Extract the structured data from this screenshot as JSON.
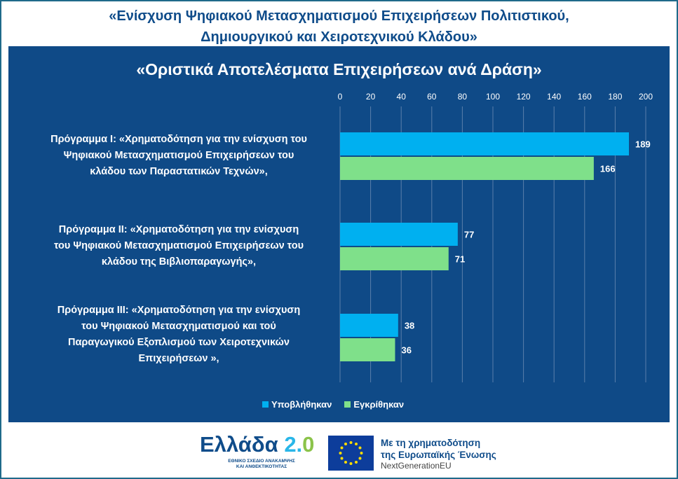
{
  "header": {
    "title_line1": "«Ενίσχυση Ψηφιακού Μετασχηματισμού Επιχειρήσεων Πολιτιστικού,",
    "title_line2": "Δημιουργικού και Χειροτεχνικού Κλάδου»"
  },
  "chart_data": {
    "type": "bar",
    "orientation": "horizontal",
    "title": "«Οριστικά Αποτελέσματα Επιχειρήσεων ανά Δράση»",
    "categories": [
      [
        "Πρόγραμμα Ι: «Χρηματοδότηση για την ενίσχυση του",
        "Ψηφιακού Μετασχηματισμού Επιχειρήσεων του",
        "κλάδου των Παραστατικών Τεχνών»,"
      ],
      [
        "Πρόγραμμα ΙΙ: «Χρηματοδότηση για την ενίσχυση",
        "του Ψηφιακού Μετασχηματισμού Επιχειρήσεων του",
        "κλάδου της Βιβλιοπαραγωγής»,"
      ],
      [
        "Πρόγραμμα ΙΙΙ: «Χρηματοδότηση για την ενίσχυση",
        "του Ψηφιακού Μετασχηματισμού και τού",
        "Παραγωγικού Εξοπλισμού των Χειροτεχνικών",
        "Επιχειρήσεων »,"
      ]
    ],
    "series": [
      {
        "name": "Υποβλήθηκαν",
        "values": [
          189,
          77,
          38
        ],
        "color": "#00b0f0"
      },
      {
        "name": "Εγκρίθηκαν",
        "values": [
          166,
          71,
          36
        ],
        "color": "#7fe08a"
      }
    ],
    "xlim": [
      0,
      200
    ],
    "xticks": [
      0,
      20,
      40,
      60,
      80,
      100,
      120,
      140,
      160,
      180,
      200
    ],
    "axis_position": "top",
    "grid": true,
    "legend": "bottom",
    "background": "#0f4a87"
  },
  "footer": {
    "greece_logo": "Ελλάδα 2.0",
    "greece_sub": "ΕΘΝΙΚΟ ΣΧΕΔΙΟ ΑΝΑΚΑΜΨΗΣ ΚΑΙ ΑΝΘΕΚΤΙΚΟΤΗΤΑΣ",
    "eu_line1": "Με τη χρηματοδότηση",
    "eu_line2": "της Ευρωπαϊκής Ένωσης",
    "eu_line3": "NextGenerationEU"
  }
}
